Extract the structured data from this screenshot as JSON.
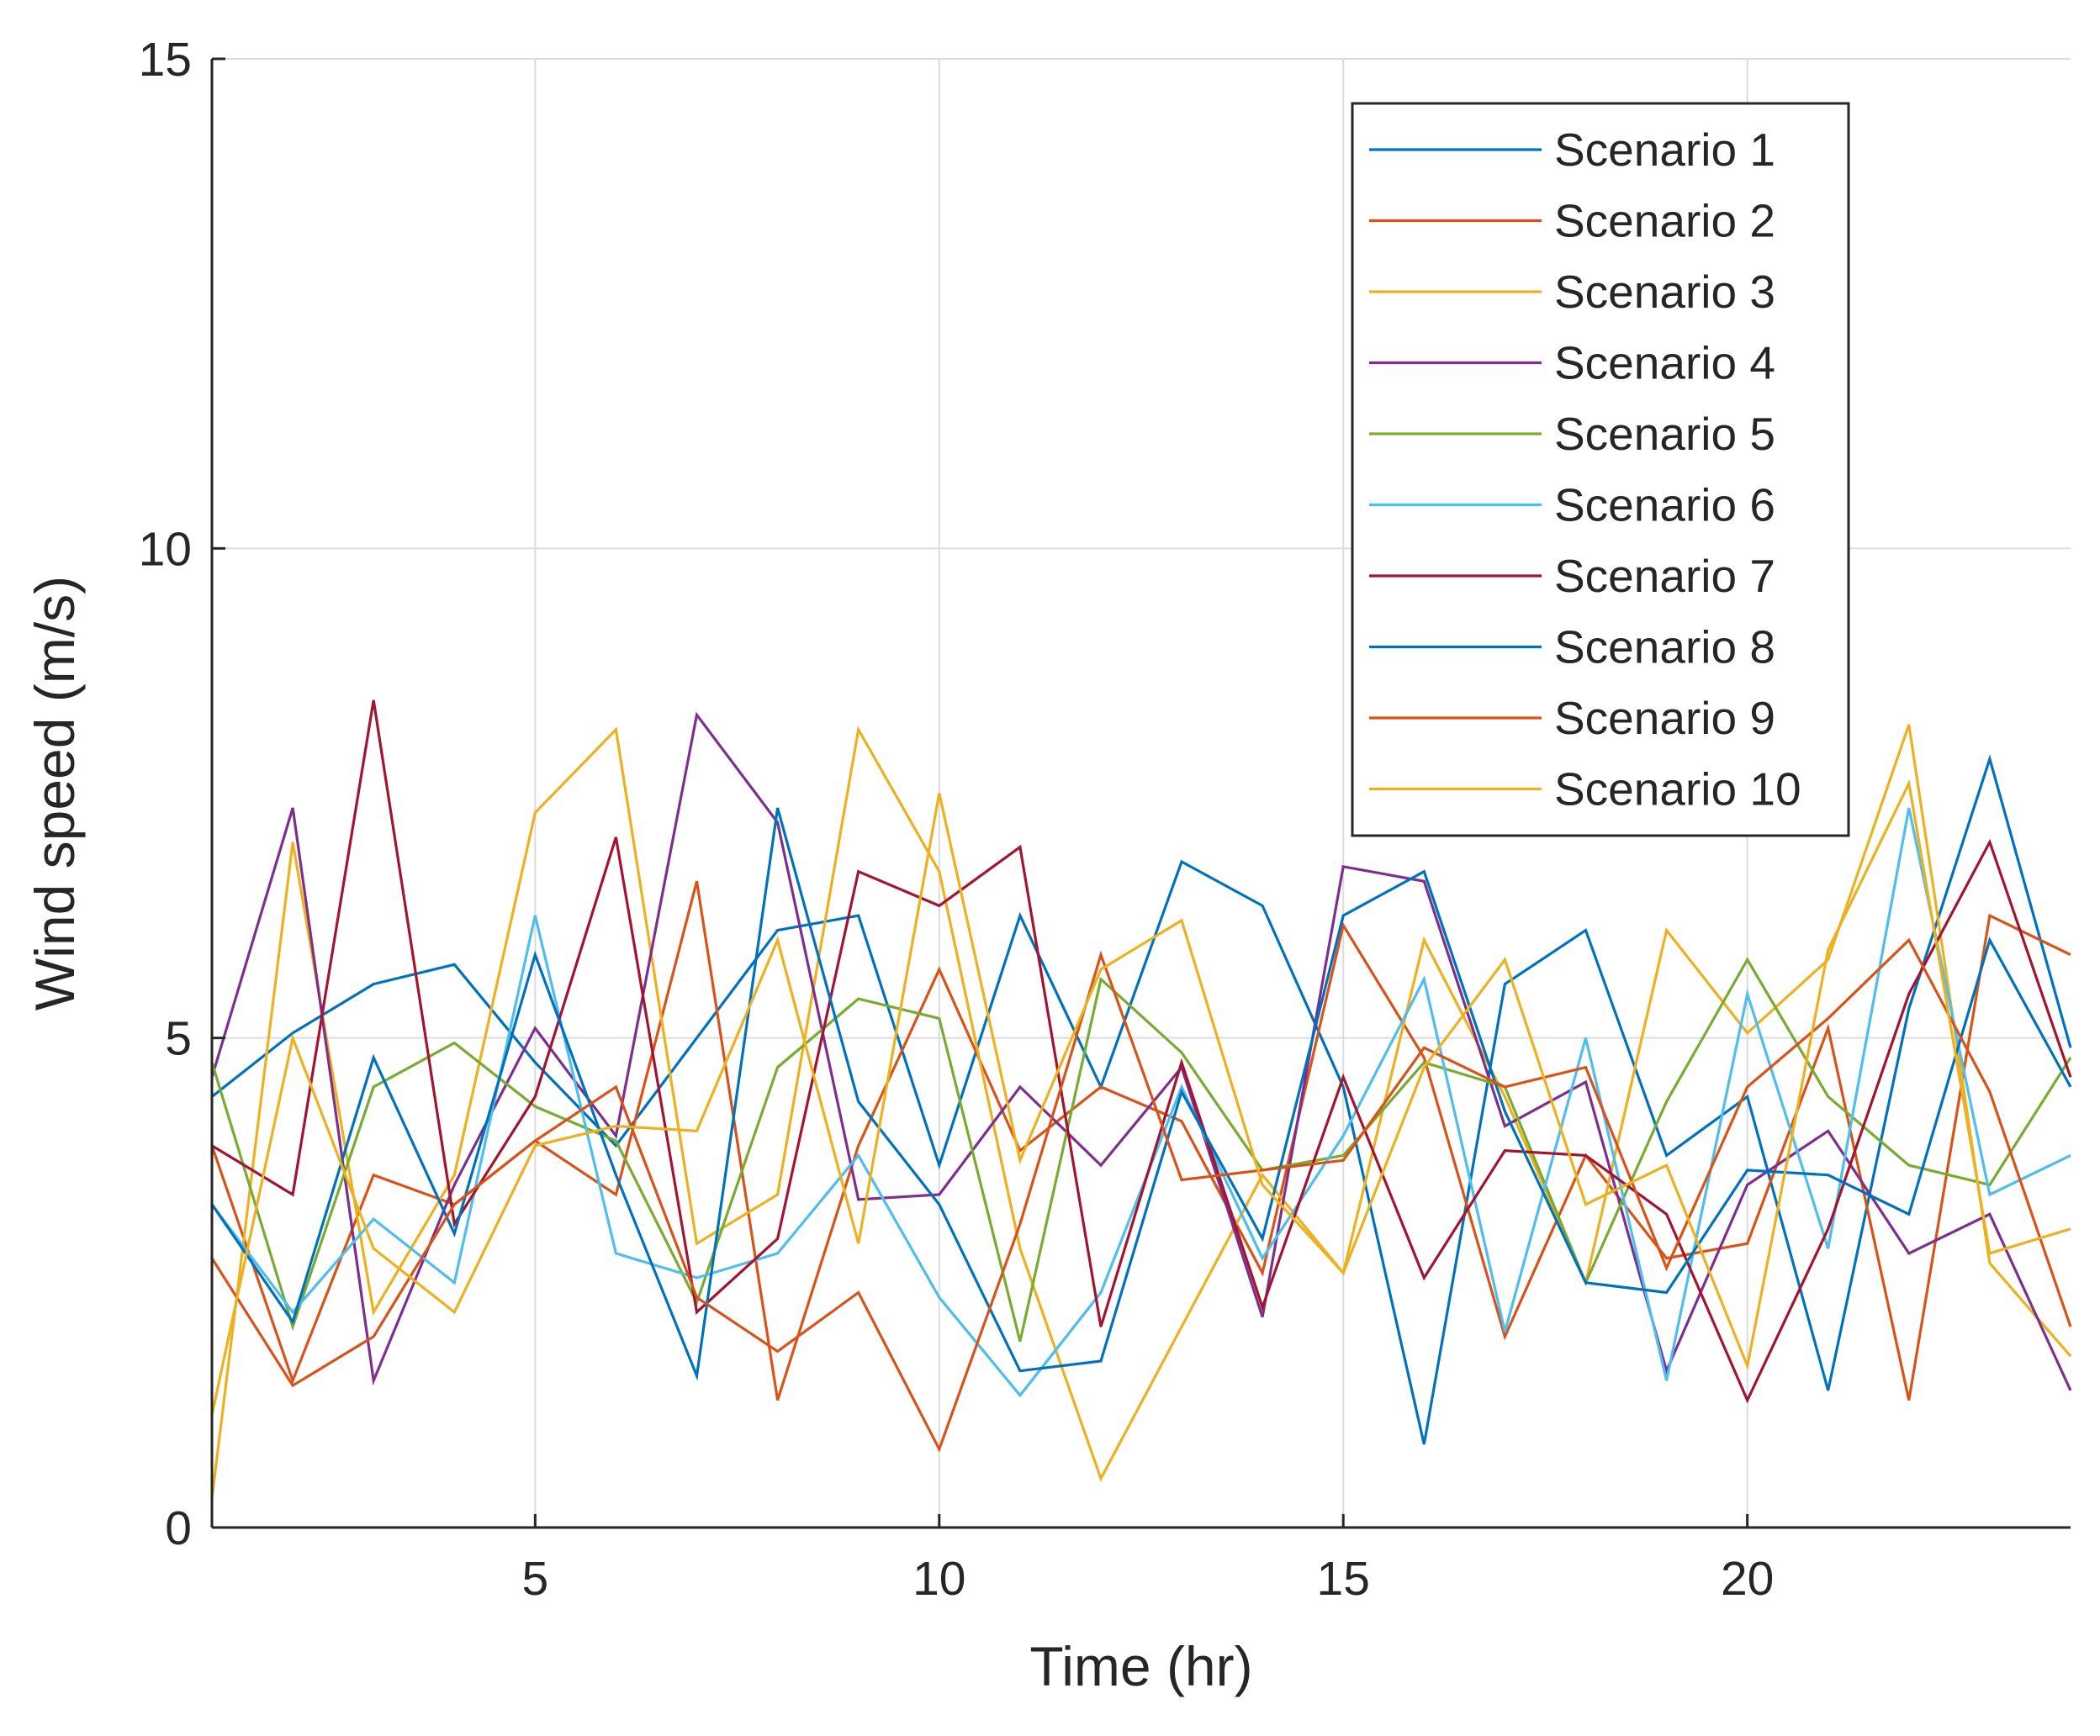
{
  "chart_data": {
    "type": "line",
    "title": "",
    "xlabel": "Time (hr)",
    "ylabel": "Wind speed (m/s)",
    "xlim": [
      1,
      24
    ],
    "ylim": [
      0,
      15
    ],
    "xticks": [
      5,
      10,
      15,
      20
    ],
    "yticks": [
      0,
      5,
      10,
      15
    ],
    "grid": true,
    "legend_position": "top-right",
    "x": [
      1,
      2,
      3,
      4,
      5,
      6,
      7,
      8,
      9,
      10,
      11,
      12,
      13,
      14,
      15,
      16,
      17,
      18,
      19,
      20,
      21,
      22,
      23,
      24
    ],
    "series": [
      {
        "name": "Scenario 1",
        "color": "#0072BD",
        "values": [
          4.4,
          5.05,
          5.55,
          5.75,
          4.75,
          3.9,
          5.0,
          6.1,
          6.25,
          3.7,
          6.25,
          4.5,
          6.8,
          6.35,
          4.5,
          0.85,
          5.55,
          6.1,
          3.8,
          4.4,
          1.4,
          5.3,
          7.85,
          4.9
        ]
      },
      {
        "name": "Scenario 2",
        "color": "#D95319",
        "values": [
          3.9,
          1.5,
          3.6,
          3.3,
          3.95,
          3.4,
          6.6,
          1.3,
          3.9,
          5.7,
          3.85,
          4.5,
          4.15,
          2.6,
          6.15,
          4.8,
          1.95,
          3.8,
          2.75,
          2.9,
          5.1,
          1.3,
          6.25,
          5.85
        ]
      },
      {
        "name": "Scenario 3",
        "color": "#EDB120",
        "values": [
          0.3,
          7.0,
          2.2,
          3.6,
          7.3,
          8.15,
          2.9,
          3.4,
          8.15,
          6.7,
          2.85,
          0.5,
          2.05,
          3.6,
          2.6,
          6.0,
          4.4,
          2.5,
          6.1,
          5.05,
          5.8,
          8.2,
          2.7,
          1.75
        ]
      },
      {
        "name": "Scenario 4",
        "color": "#7E2F8E",
        "values": [
          4.6,
          7.35,
          1.5,
          3.5,
          5.1,
          4.0,
          8.3,
          7.2,
          3.35,
          3.4,
          4.5,
          3.7,
          4.7,
          2.15,
          6.75,
          6.6,
          4.1,
          4.55,
          1.6,
          3.5,
          4.05,
          2.8,
          3.2,
          1.4
        ]
      },
      {
        "name": "Scenario 5",
        "color": "#77AC30",
        "values": [
          4.75,
          2.05,
          4.5,
          4.95,
          4.3,
          3.95,
          2.3,
          4.7,
          5.4,
          5.2,
          1.9,
          5.6,
          4.85,
          3.65,
          3.8,
          4.75,
          4.5,
          2.5,
          4.35,
          5.8,
          4.4,
          3.7,
          3.5,
          4.8
        ]
      },
      {
        "name": "Scenario 6",
        "color": "#4DBEEE",
        "values": [
          3.3,
          2.2,
          3.15,
          2.5,
          6.25,
          2.8,
          2.55,
          2.8,
          3.8,
          2.35,
          1.35,
          2.4,
          4.5,
          2.75,
          4.0,
          5.6,
          2.0,
          5.0,
          1.5,
          5.45,
          2.85,
          7.35,
          3.4,
          3.8
        ]
      },
      {
        "name": "Scenario 7",
        "color": "#A2142F",
        "values": [
          3.9,
          3.4,
          8.45,
          3.1,
          4.4,
          7.05,
          2.2,
          2.95,
          6.7,
          6.35,
          6.95,
          2.05,
          4.75,
          2.25,
          4.6,
          2.55,
          3.85,
          3.8,
          3.2,
          1.3,
          3.05,
          5.45,
          7.0,
          4.6
        ]
      },
      {
        "name": "Scenario 8",
        "color": "#0072BD",
        "values": [
          3.3,
          2.1,
          4.8,
          3.0,
          5.85,
          3.6,
          1.55,
          7.35,
          4.35,
          3.3,
          1.6,
          1.7,
          4.45,
          2.95,
          6.25,
          6.7,
          4.25,
          2.5,
          2.4,
          3.65,
          3.6,
          3.2,
          6.0,
          4.5
        ]
      },
      {
        "name": "Scenario 9",
        "color": "#D95319",
        "values": [
          2.75,
          1.45,
          1.95,
          3.3,
          3.95,
          4.5,
          2.35,
          1.8,
          2.4,
          0.8,
          3.1,
          5.85,
          3.55,
          3.65,
          3.75,
          4.9,
          4.5,
          4.7,
          2.65,
          4.5,
          5.2,
          6.0,
          4.45,
          2.05
        ]
      },
      {
        "name": "Scenario 10",
        "color": "#EDB120",
        "values": [
          1.15,
          5.0,
          2.85,
          2.2,
          3.9,
          4.1,
          4.05,
          6.0,
          2.9,
          7.5,
          3.75,
          5.7,
          6.2,
          3.5,
          2.6,
          4.7,
          5.8,
          3.3,
          3.7,
          1.65,
          5.9,
          7.6,
          2.8,
          3.05
        ]
      }
    ]
  }
}
